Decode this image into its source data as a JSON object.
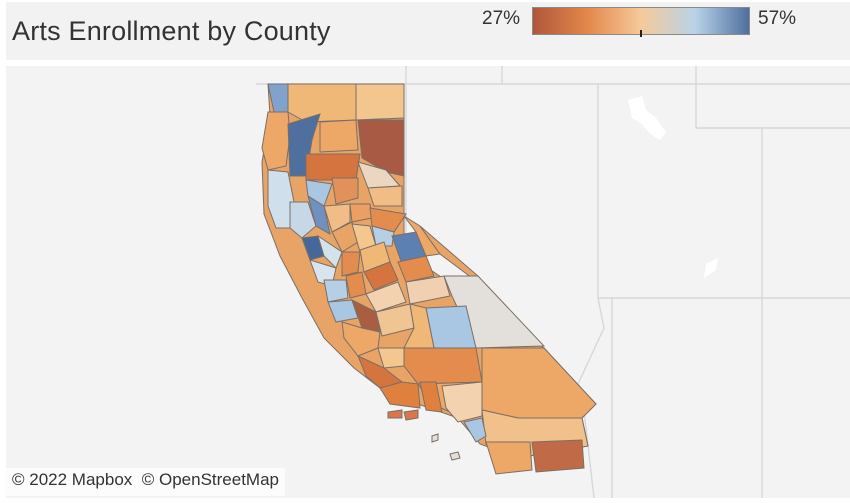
{
  "title": "Arts Enrollment by County",
  "legend": {
    "min_label": "27%",
    "max_label": "57%",
    "colors": [
      "#b0573a",
      "#e3874a",
      "#f6c99a",
      "#b8d3e8",
      "#4f6f9f"
    ]
  },
  "attribution": {
    "mapbox": "© 2022 Mapbox",
    "osm": "© OpenStreetMap"
  },
  "map": {
    "background": "#f3f3f3",
    "county_border": "#7a6f66"
  }
}
